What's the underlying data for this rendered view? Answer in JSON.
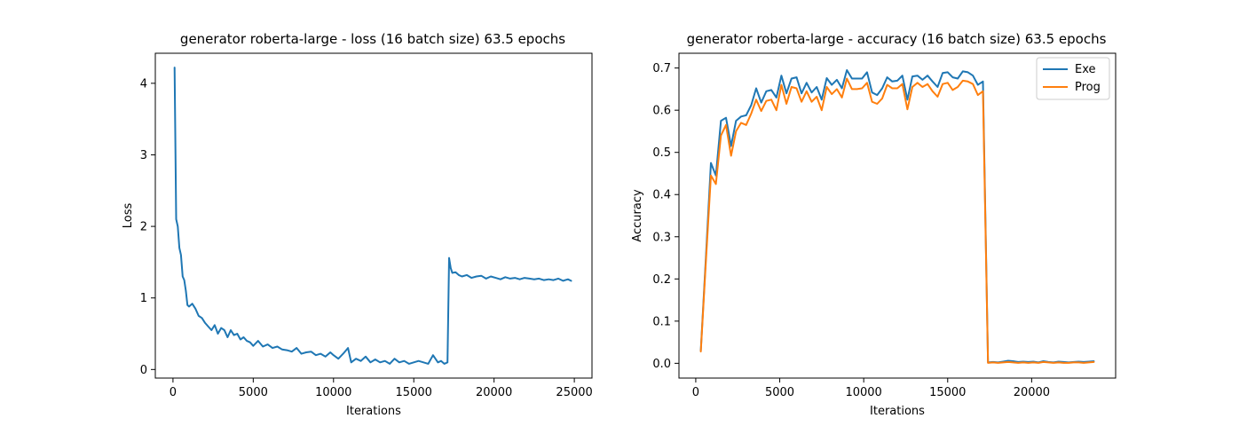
{
  "chart_data": [
    {
      "type": "line",
      "title": "generator roberta-large - loss (16 batch size) 63.5 epochs",
      "xlabel": "Iterations",
      "ylabel": "Loss",
      "xlim": [
        -1100,
        26100
      ],
      "ylim": [
        -0.12,
        4.42
      ],
      "xticks": [
        0,
        5000,
        10000,
        15000,
        20000,
        25000
      ],
      "yticks": [
        0,
        1,
        2,
        3,
        4
      ],
      "grid": false,
      "legend": null,
      "series": [
        {
          "color": "#1f77b4",
          "x": [
            100,
            200,
            300,
            400,
            500,
            600,
            700,
            800,
            900,
            1000,
            1200,
            1400,
            1600,
            1800,
            2000,
            2200,
            2400,
            2600,
            2800,
            3000,
            3200,
            3400,
            3600,
            3800,
            4000,
            4200,
            4400,
            4600,
            4800,
            5000,
            5300,
            5600,
            5900,
            6200,
            6500,
            6800,
            7100,
            7400,
            7700,
            8000,
            8300,
            8600,
            8900,
            9200,
            9500,
            9800,
            10000,
            10300,
            10600,
            10900,
            11100,
            11400,
            11700,
            12000,
            12300,
            12600,
            12900,
            13200,
            13500,
            13800,
            14100,
            14400,
            14700,
            15000,
            15300,
            15600,
            15900,
            16200,
            16500,
            16700,
            16900,
            17100,
            17200,
            17300,
            17400,
            17600,
            17800,
            18000,
            18300,
            18600,
            18900,
            19200,
            19500,
            19800,
            20100,
            20400,
            20700,
            21000,
            21300,
            21600,
            21900,
            22200,
            22500,
            22800,
            23100,
            23400,
            23700,
            24000,
            24300,
            24600,
            24800
          ],
          "values": [
            4.22,
            2.1,
            2.0,
            1.7,
            1.6,
            1.3,
            1.25,
            1.1,
            0.9,
            0.88,
            0.92,
            0.85,
            0.75,
            0.72,
            0.65,
            0.6,
            0.55,
            0.62,
            0.5,
            0.58,
            0.55,
            0.45,
            0.55,
            0.48,
            0.5,
            0.42,
            0.45,
            0.4,
            0.38,
            0.33,
            0.4,
            0.32,
            0.35,
            0.3,
            0.32,
            0.28,
            0.27,
            0.25,
            0.3,
            0.22,
            0.24,
            0.25,
            0.2,
            0.22,
            0.18,
            0.24,
            0.2,
            0.15,
            0.22,
            0.3,
            0.1,
            0.15,
            0.12,
            0.18,
            0.1,
            0.14,
            0.1,
            0.12,
            0.08,
            0.15,
            0.1,
            0.12,
            0.08,
            0.1,
            0.12,
            0.1,
            0.08,
            0.2,
            0.1,
            0.12,
            0.08,
            0.1,
            1.56,
            1.42,
            1.35,
            1.36,
            1.32,
            1.3,
            1.32,
            1.28,
            1.3,
            1.31,
            1.27,
            1.3,
            1.28,
            1.26,
            1.29,
            1.27,
            1.28,
            1.26,
            1.28,
            1.27,
            1.26,
            1.27,
            1.25,
            1.26,
            1.25,
            1.27,
            1.24,
            1.26,
            1.24
          ]
        }
      ]
    },
    {
      "type": "line",
      "title": "generator roberta-large - accuracy (16 batch size) 63.5 epochs",
      "xlabel": "Iterations",
      "ylabel": "Accuracy",
      "xlim": [
        -1000,
        25000
      ],
      "ylim": [
        -0.035,
        0.735
      ],
      "xticks": [
        0,
        5000,
        10000,
        15000,
        20000
      ],
      "yticks": [
        0.0,
        0.1,
        0.2,
        0.3,
        0.4,
        0.5,
        0.6,
        0.7
      ],
      "ytick_labels": [
        "0.0",
        "0.1",
        "0.2",
        "0.3",
        "0.4",
        "0.5",
        "0.6",
        "0.7"
      ],
      "grid": false,
      "legend": "top-right",
      "series": [
        {
          "name": "Exe",
          "color": "#1f77b4",
          "x": [
            300,
            600,
            900,
            1200,
            1500,
            1800,
            2100,
            2400,
            2700,
            3000,
            3300,
            3600,
            3900,
            4200,
            4500,
            4800,
            5100,
            5400,
            5700,
            6000,
            6300,
            6600,
            6900,
            7200,
            7500,
            7800,
            8100,
            8400,
            8700,
            9000,
            9300,
            9600,
            9900,
            10200,
            10500,
            10800,
            11100,
            11400,
            11700,
            12000,
            12300,
            12600,
            12900,
            13200,
            13500,
            13800,
            14100,
            14400,
            14700,
            15000,
            15300,
            15600,
            15900,
            16200,
            16500,
            16800,
            17100,
            17400,
            17700,
            18000,
            18300,
            18600,
            18900,
            19200,
            19500,
            19800,
            20100,
            20400,
            20700,
            21000,
            21300,
            21600,
            21900,
            22200,
            22500,
            22800,
            23100,
            23400,
            23700
          ],
          "values": [
            0.03,
            0.25,
            0.475,
            0.445,
            0.575,
            0.582,
            0.515,
            0.575,
            0.585,
            0.588,
            0.612,
            0.652,
            0.618,
            0.645,
            0.648,
            0.63,
            0.682,
            0.64,
            0.675,
            0.678,
            0.64,
            0.665,
            0.642,
            0.655,
            0.625,
            0.676,
            0.66,
            0.672,
            0.652,
            0.695,
            0.675,
            0.675,
            0.675,
            0.69,
            0.642,
            0.636,
            0.652,
            0.678,
            0.668,
            0.67,
            0.682,
            0.625,
            0.68,
            0.682,
            0.672,
            0.682,
            0.668,
            0.655,
            0.688,
            0.69,
            0.678,
            0.675,
            0.692,
            0.69,
            0.682,
            0.66,
            0.668,
            0.002,
            0.003,
            0.002,
            0.004,
            0.006,
            0.005,
            0.003,
            0.004,
            0.003,
            0.004,
            0.002,
            0.005,
            0.003,
            0.002,
            0.004,
            0.003,
            0.002,
            0.003,
            0.004,
            0.003,
            0.004,
            0.005
          ]
        },
        {
          "name": "Prog",
          "color": "#ff7f0e",
          "x": [
            300,
            600,
            900,
            1200,
            1500,
            1800,
            2100,
            2400,
            2700,
            3000,
            3300,
            3600,
            3900,
            4200,
            4500,
            4800,
            5100,
            5400,
            5700,
            6000,
            6300,
            6600,
            6900,
            7200,
            7500,
            7800,
            8100,
            8400,
            8700,
            9000,
            9300,
            9600,
            9900,
            10200,
            10500,
            10800,
            11100,
            11400,
            11700,
            12000,
            12300,
            12600,
            12900,
            13200,
            13500,
            13800,
            14100,
            14400,
            14700,
            15000,
            15300,
            15600,
            15900,
            16200,
            16500,
            16800,
            17100,
            17400,
            17700,
            18000,
            18300,
            18600,
            18900,
            19200,
            19500,
            19800,
            20100,
            20400,
            20700,
            21000,
            21300,
            21600,
            21900,
            22200,
            22500,
            22800,
            23100,
            23400,
            23700
          ],
          "values": [
            0.028,
            0.24,
            0.445,
            0.425,
            0.54,
            0.565,
            0.492,
            0.55,
            0.57,
            0.565,
            0.592,
            0.625,
            0.598,
            0.622,
            0.625,
            0.6,
            0.66,
            0.615,
            0.655,
            0.652,
            0.62,
            0.645,
            0.62,
            0.632,
            0.6,
            0.655,
            0.638,
            0.65,
            0.63,
            0.675,
            0.65,
            0.65,
            0.652,
            0.665,
            0.62,
            0.615,
            0.628,
            0.66,
            0.652,
            0.652,
            0.662,
            0.602,
            0.655,
            0.665,
            0.655,
            0.662,
            0.645,
            0.632,
            0.662,
            0.665,
            0.648,
            0.655,
            0.67,
            0.668,
            0.662,
            0.636,
            0.645,
            0.001,
            0.002,
            0.001,
            0.002,
            0.003,
            0.002,
            0.001,
            0.002,
            0.001,
            0.002,
            0.001,
            0.003,
            0.002,
            0.001,
            0.002,
            0.001,
            0.001,
            0.002,
            0.002,
            0.001,
            0.002,
            0.003
          ]
        }
      ]
    }
  ]
}
